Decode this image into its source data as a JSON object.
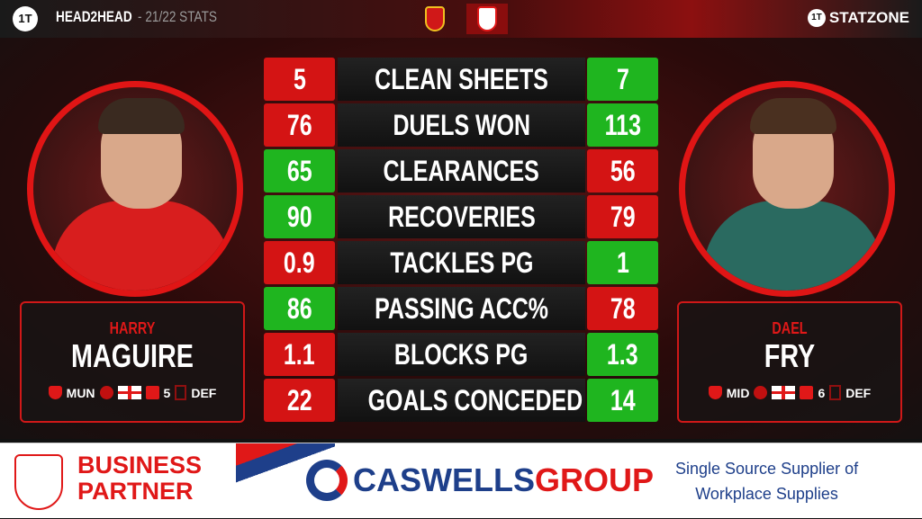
{
  "header": {
    "logo": "1T",
    "title": "HEAD2HEAD",
    "subtitle": "- 21/22 STATS",
    "brand": "STATZONE"
  },
  "colors": {
    "better": "#1fb51f",
    "worse": "#d41414",
    "accent": "#e01818"
  },
  "players": [
    {
      "first": "HARRY",
      "last": "MAGUIRE",
      "club": "MUN",
      "nationality": "England",
      "number": "5",
      "position": "DEF",
      "kit": "#d81e1e",
      "hair": "#3a2a20"
    },
    {
      "first": "DAEL",
      "last": "FRY",
      "club": "MID",
      "nationality": "England",
      "number": "6",
      "position": "DEF",
      "kit": "#2a6a60",
      "hair": "#4a3020"
    }
  ],
  "stats": [
    {
      "label": "CLEAN SHEETS",
      "left": "5",
      "right": "7",
      "winner": "right"
    },
    {
      "label": "DUELS WON",
      "left": "76",
      "right": "113",
      "winner": "right"
    },
    {
      "label": "CLEARANCES",
      "left": "65",
      "right": "56",
      "winner": "left"
    },
    {
      "label": "RECOVERIES",
      "left": "90",
      "right": "79",
      "winner": "left"
    },
    {
      "label": "TACKLES PG",
      "left": "0.9",
      "right": "1",
      "winner": "right"
    },
    {
      "label": "PASSING ACC%",
      "left": "86",
      "right": "78",
      "winner": "left"
    },
    {
      "label": "BLOCKS PG",
      "left": "1.1",
      "right": "1.3",
      "winner": "right"
    },
    {
      "label": "GOALS CONCEDED",
      "left": "22",
      "right": "14",
      "winner": "right"
    }
  ],
  "footer": {
    "line1": "BUSINESS",
    "line2": "PARTNER",
    "sponsor_a": "CASWELLS",
    "sponsor_b": "GROUP",
    "tagline1": "Single Source Supplier of",
    "tagline2": "Workplace Supplies"
  }
}
